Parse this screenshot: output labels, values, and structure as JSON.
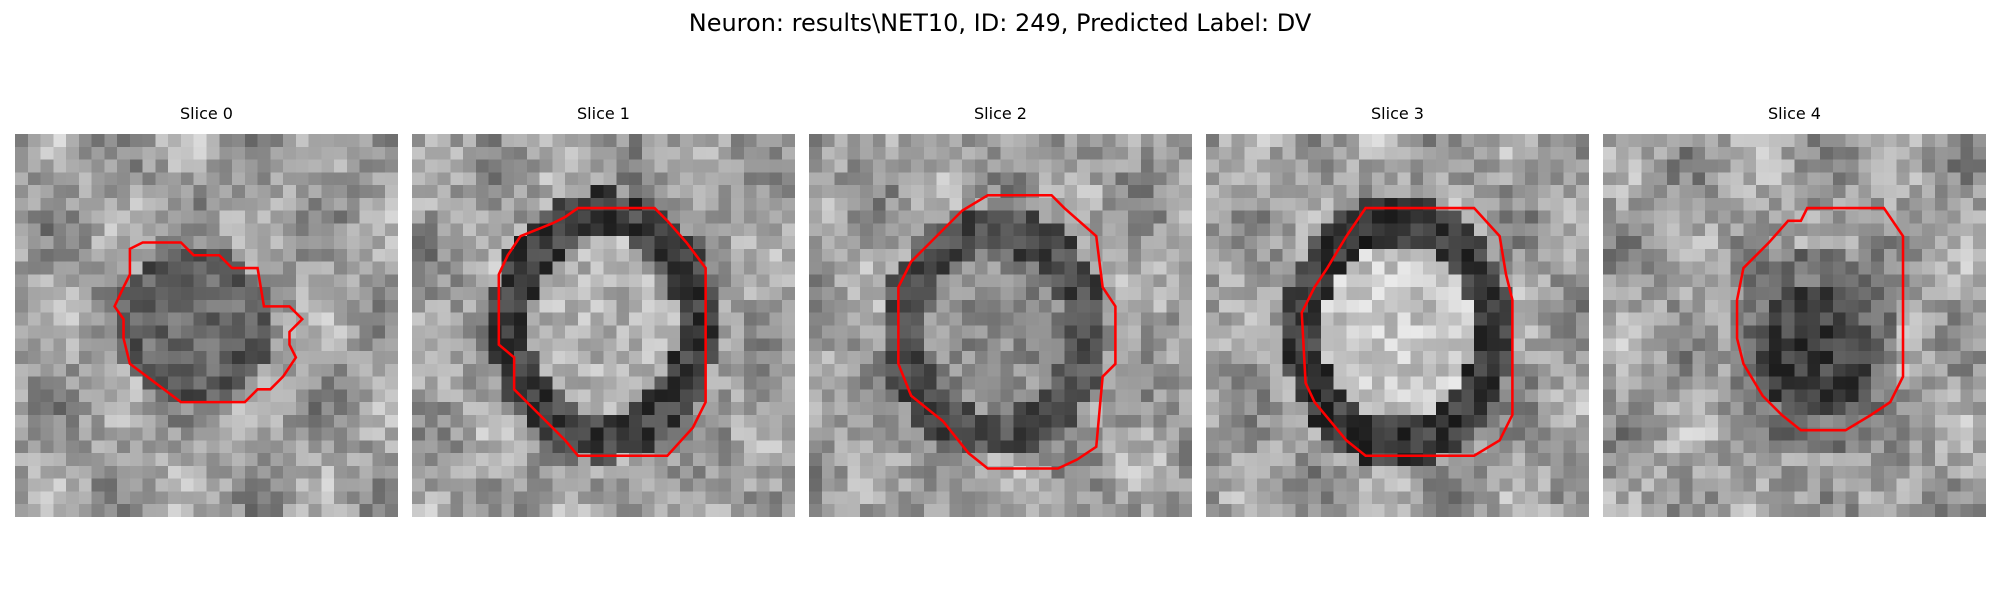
{
  "figure": {
    "title": "Neuron: results\\NET10, ID: 249, Predicted Label: DV"
  },
  "colors": {
    "contour": "#ff0000",
    "colormap": "gray",
    "background": "#ffffff"
  },
  "slices": [
    {
      "title": "Slice 0"
    },
    {
      "title": "Slice 1"
    },
    {
      "title": "Slice 2"
    },
    {
      "title": "Slice 3"
    },
    {
      "title": "Slice 4"
    }
  ]
}
